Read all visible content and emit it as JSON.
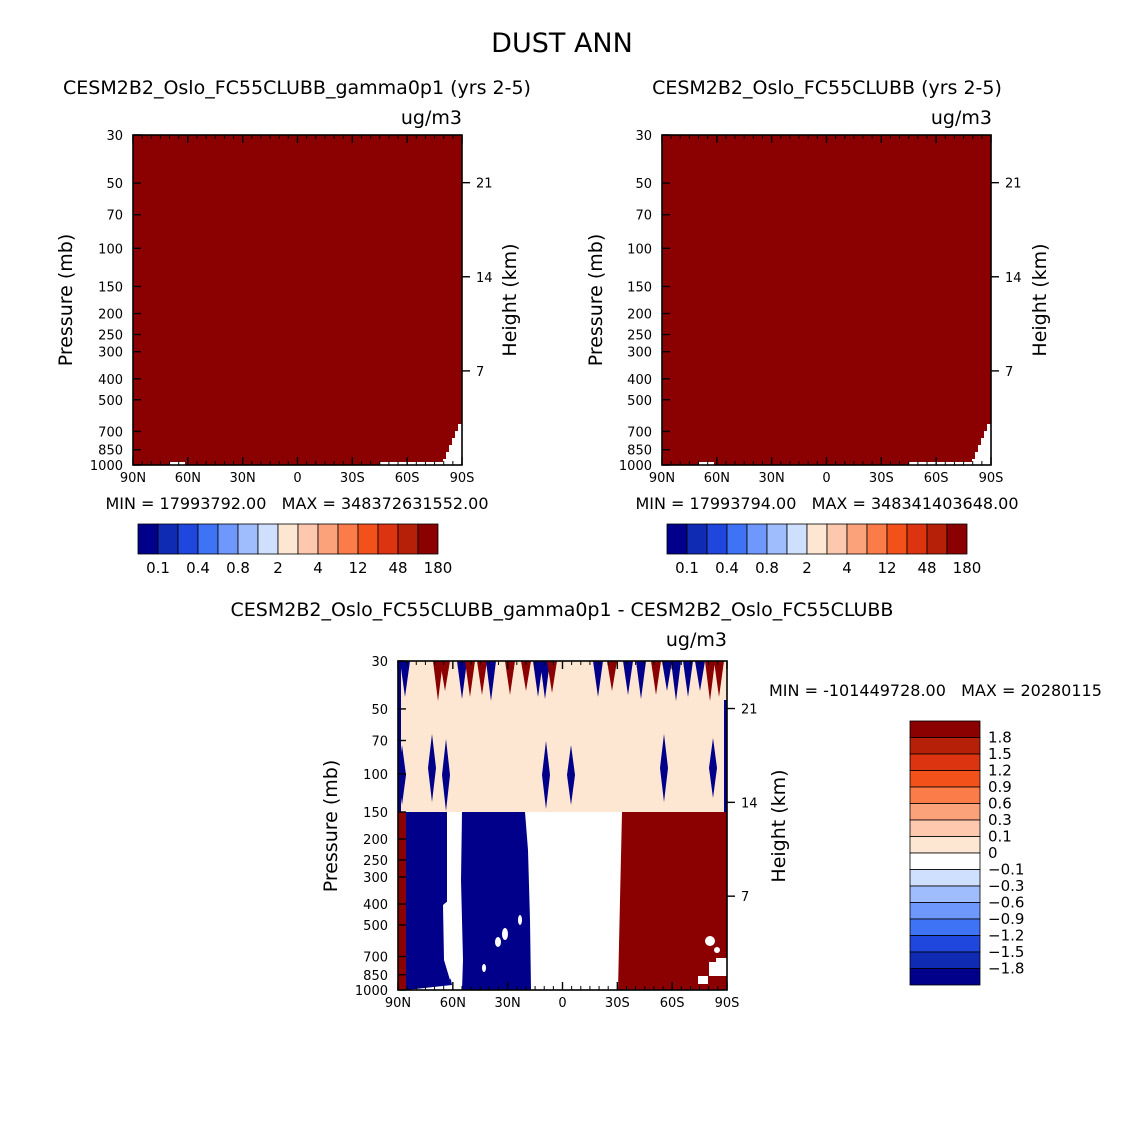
{
  "figure": {
    "title": "DUST ANN"
  },
  "colors": {
    "dark_red": "#8b0000",
    "navy": "#00008b",
    "beige": "#fde6d2",
    "white": "#ffffff",
    "axis": "#000000"
  },
  "chart_data": [
    {
      "id": "top-left",
      "type": "heatmap",
      "title": "CESM2B2_Oslo_FC55CLUBB_gamma0p1 (yrs 2-5)",
      "units": "ug/m3",
      "ylabel": "Pressure (mb)",
      "y2label": "Height (km)",
      "x_ticks": [
        "90N",
        "60N",
        "30N",
        "0",
        "30S",
        "60S",
        "90S"
      ],
      "y_ticks": [
        "30",
        "50",
        "70",
        "100",
        "150",
        "200",
        "250",
        "300",
        "400",
        "500",
        "700",
        "850",
        "1000"
      ],
      "y2_ticks": [
        "21",
        "14",
        "7"
      ],
      "stats": "MIN = 17993792.00   MAX = 348372631552.00",
      "colorbar": {
        "labels": [
          "0.1",
          "0.4",
          "0.8",
          "2",
          "4",
          "12",
          "48",
          "180"
        ],
        "colors": [
          "#00008b",
          "#0f2bb4",
          "#1f47dd",
          "#3f73f5",
          "#6e98fb",
          "#9fbcfd",
          "#cfe0fe",
          "#fde6d2",
          "#fdc8ad",
          "#fca27a",
          "#fb7b49",
          "#f25219",
          "#dc3310",
          "#b72008",
          "#8b0000"
        ]
      },
      "field": "dust concentration exceeds 180 ug/m3 (dark red) almost everywhere; small white (below lowest level) region near surface at 60S-90S"
    },
    {
      "id": "top-right",
      "type": "heatmap",
      "title": "CESM2B2_Oslo_FC55CLUBB (yrs 2-5)",
      "units": "ug/m3",
      "ylabel": "Pressure (mb)",
      "y2label": "Height (km)",
      "x_ticks": [
        "90N",
        "60N",
        "30N",
        "0",
        "30S",
        "60S",
        "90S"
      ],
      "y_ticks": [
        "30",
        "50",
        "70",
        "100",
        "150",
        "200",
        "250",
        "300",
        "400",
        "500",
        "700",
        "850",
        "1000"
      ],
      "y2_ticks": [
        "21",
        "14",
        "7"
      ],
      "stats": "MIN = 17993794.00   MAX = 348341403648.00",
      "colorbar": {
        "labels": [
          "0.1",
          "0.4",
          "0.8",
          "2",
          "4",
          "12",
          "48",
          "180"
        ],
        "colors": [
          "#00008b",
          "#0f2bb4",
          "#1f47dd",
          "#3f73f5",
          "#6e98fb",
          "#9fbcfd",
          "#cfe0fe",
          "#fde6d2",
          "#fdc8ad",
          "#fca27a",
          "#fb7b49",
          "#f25219",
          "#dc3310",
          "#b72008",
          "#8b0000"
        ]
      },
      "field": "same as left panel"
    },
    {
      "id": "bottom",
      "type": "heatmap",
      "title": "CESM2B2_Oslo_FC55CLUBB_gamma0p1 - CESM2B2_Oslo_FC55CLUBB",
      "units": "ug/m3",
      "ylabel": "Pressure (mb)",
      "y2label": "Height (km)",
      "x_ticks": [
        "90N",
        "60N",
        "30N",
        "0",
        "30S",
        "60S",
        "90S"
      ],
      "y_ticks": [
        "30",
        "50",
        "70",
        "100",
        "150",
        "200",
        "250",
        "300",
        "400",
        "500",
        "700",
        "850",
        "1000"
      ],
      "y2_ticks": [
        "21",
        "14",
        "7"
      ],
      "stats": "MIN = -101449728.00   MAX = 20280115",
      "colorbar": {
        "labels": [
          "1.8",
          "1.5",
          "1.2",
          "0.9",
          "0.6",
          "0.3",
          "0.1",
          "0",
          "-0.1",
          "-0.3",
          "-0.6",
          "-0.9",
          "-1.2",
          "-1.5",
          "-1.8"
        ],
        "colors": [
          "#8b0000",
          "#b72008",
          "#dc3310",
          "#f25219",
          "#fb7b49",
          "#fca27a",
          "#fdc8ad",
          "#fde6d2",
          "#ffffff",
          "#cfe0fe",
          "#9fbcfd",
          "#6e98fb",
          "#3f73f5",
          "#1f47dd",
          "#0f2bb4",
          "#00008b"
        ]
      },
      "field": "above 150 mb: near-zero positive (beige) with small spikes; below 150 mb: strongly negative (navy) 90N-15N, near-zero (white) 15N-30S, strongly positive (dark red) 30S-90S"
    }
  ]
}
